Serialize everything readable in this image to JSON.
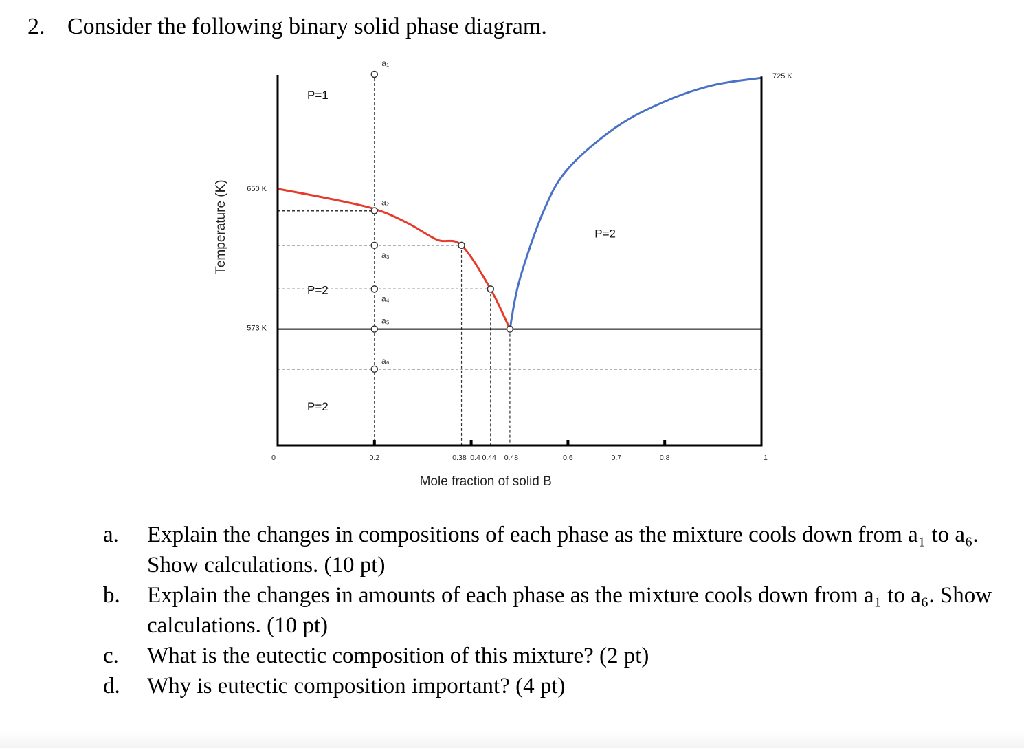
{
  "question": {
    "number": "2.",
    "prompt": "Consider the following binary solid phase diagram."
  },
  "chart_data": {
    "type": "phase-diagram",
    "xlabel": "Mole fraction of solid B",
    "ylabel": "Temperature (K)",
    "x_ticks": [
      "0",
      "0.2",
      "0.38",
      "0.4",
      "0.44",
      "0.48",
      "0.6",
      "0.7",
      "0.8",
      "1"
    ],
    "x_tick_values": [
      0,
      0.2,
      0.38,
      0.4,
      0.44,
      0.48,
      0.6,
      0.7,
      0.8,
      1
    ],
    "temperature_labels": [
      {
        "text": "650 K",
        "value": 650
      },
      {
        "text": "573 K",
        "value": 573
      },
      {
        "text": "725 K",
        "value": 725
      }
    ],
    "ylim": [
      509,
      713
    ],
    "liquidus_A": {
      "name": "liquidus A side",
      "color": "#e53b2c",
      "x": [
        0,
        0.1,
        0.2,
        0.27,
        0.33,
        0.38,
        0.44,
        0.48
      ],
      "y": [
        650,
        645,
        639,
        631,
        622,
        619,
        595,
        573
      ]
    },
    "liquidus_B": {
      "name": "liquidus B side",
      "color": "#4a72c4",
      "x": [
        0.48,
        0.5,
        0.55,
        0.6,
        0.7,
        0.8,
        0.9,
        1
      ],
      "y": [
        573,
        600,
        638,
        661,
        684,
        698,
        707,
        711
      ]
    },
    "eutectic": {
      "x": 0.48,
      "T": 573
    },
    "isopleth": {
      "x": 0.2,
      "label": "path a1 to a6"
    },
    "points": [
      {
        "label": "a₁",
        "x": 0.2,
        "T": 713
      },
      {
        "label": "a₂",
        "x": 0.2,
        "T": 638
      },
      {
        "label": "a₃",
        "x": 0.2,
        "T": 619
      },
      {
        "label": "a₄",
        "x": 0.2,
        "T": 595
      },
      {
        "label": "a₅",
        "x": 0.2,
        "T": 573
      },
      {
        "label": "a₆",
        "x": 0.2,
        "T": 551
      }
    ],
    "tie_lines": [
      {
        "T": 638,
        "x_from": 0,
        "x_to": 0.2
      },
      {
        "T": 619,
        "x_from": 0,
        "x_to": 0.38
      },
      {
        "T": 595,
        "x_from": 0,
        "x_to": 0.44
      },
      {
        "T": 551,
        "x_from": 0,
        "x_to": 1
      }
    ],
    "drop_lines_x": [
      0.38,
      0.44,
      0.48
    ],
    "regions": [
      {
        "label": "P=1",
        "x": 0.1,
        "T": 702
      },
      {
        "label": "P=2",
        "x": 0.1,
        "T": 595
      },
      {
        "label": "P=2",
        "x": 0.1,
        "T": 531
      },
      {
        "label": "P=2",
        "x": 0.66,
        "T": 626
      }
    ],
    "colors": {
      "liquidus_left": "#e53b2c",
      "liquidus_right": "#4a72c4",
      "axis": "#000000"
    }
  },
  "subquestions": [
    {
      "letter": "a.",
      "text": "Explain the changes in compositions of each phase as the mixture cools down from a₁ to a₆. Show calculations. (10 pt)"
    },
    {
      "letter": "b.",
      "text": "Explain the changes in amounts of each phase as the mixture cools down from a₁ to a₆. Show calculations.  (10 pt)"
    },
    {
      "letter": "c.",
      "text": "What is the eutectic composition of this mixture? (2 pt)"
    },
    {
      "letter": "d.",
      "text": "Why is eutectic composition important? (4 pt)"
    }
  ]
}
